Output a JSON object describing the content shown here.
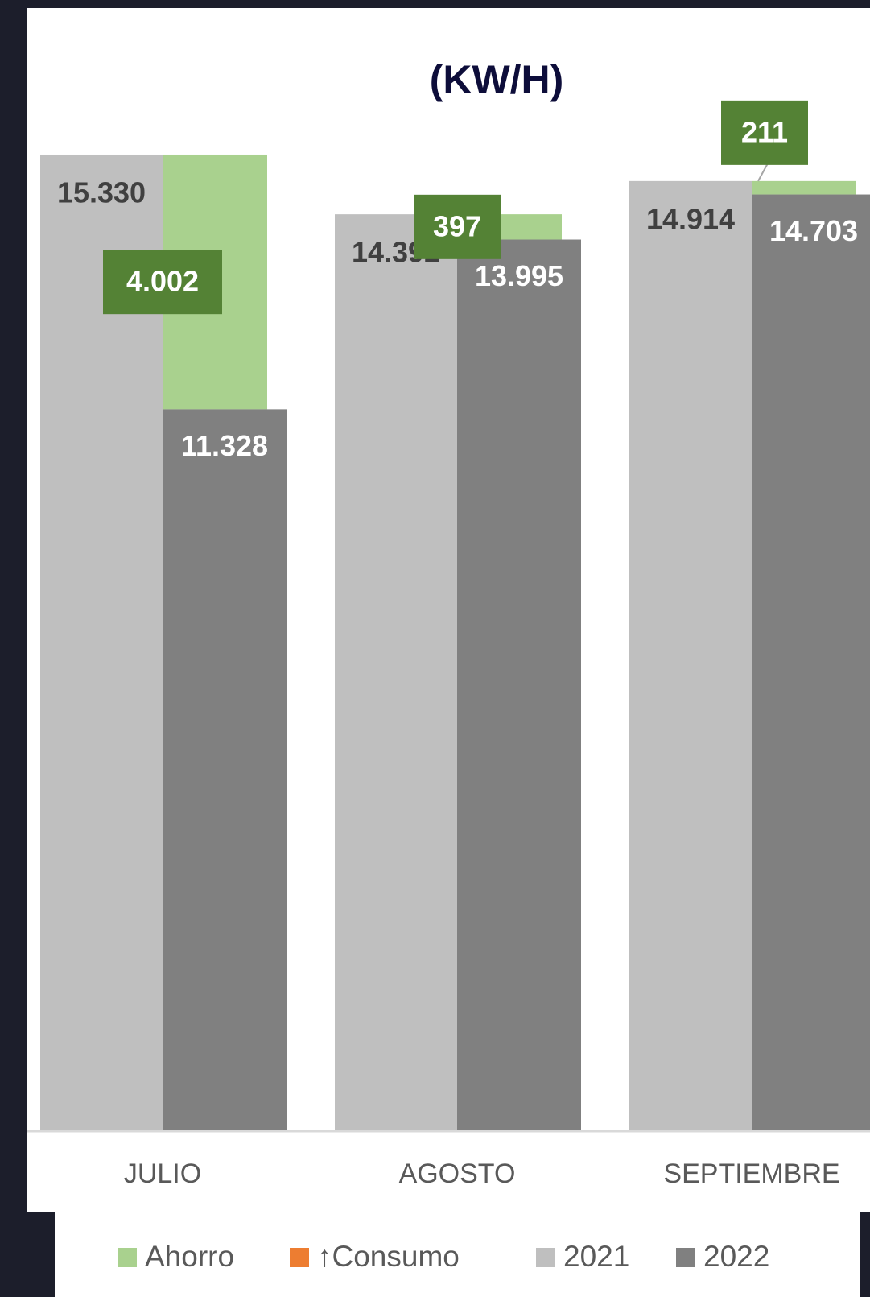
{
  "chart_data": {
    "type": "bar",
    "title": "(KW/H)",
    "categories": [
      "JULIO",
      "AGOSTO",
      "SEPTIEMBRE"
    ],
    "series": [
      {
        "name": "Ahorro",
        "color": "#a9d18e",
        "values": [
          4002,
          397,
          211
        ],
        "value_labels": [
          "4.002",
          "397",
          "211"
        ]
      },
      {
        "name": "↑Consumo",
        "color": "#ed7d31",
        "values": [
          null,
          null,
          null
        ]
      },
      {
        "name": "2021",
        "color": "#bfbfbf",
        "values": [
          15330,
          14392,
          14914
        ],
        "value_labels": [
          "15.330",
          "14.392",
          "14.914"
        ]
      },
      {
        "name": "2022",
        "color": "#808080",
        "values": [
          11328,
          13995,
          14703
        ],
        "value_labels": [
          "11.328",
          "13.995",
          "14.703"
        ]
      }
    ],
    "ylim": [
      0,
      16000
    ],
    "grid": false
  }
}
